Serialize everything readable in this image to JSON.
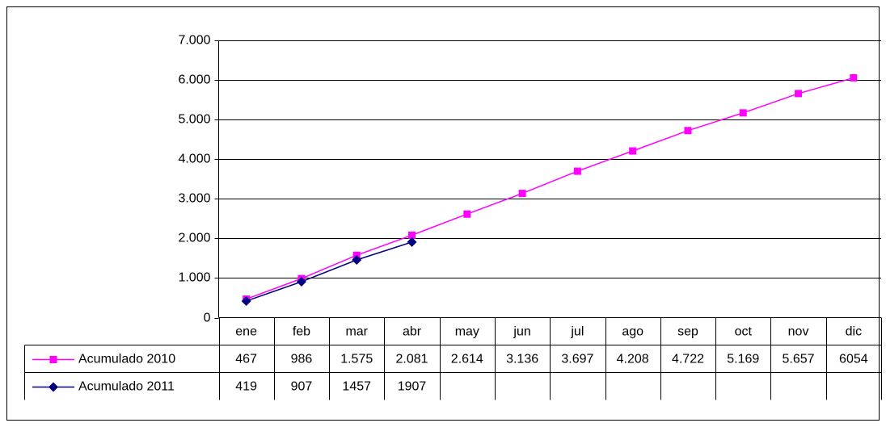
{
  "chart_data": {
    "type": "line",
    "categories": [
      "ene",
      "feb",
      "mar",
      "abr",
      "may",
      "jun",
      "jul",
      "ago",
      "sep",
      "oct",
      "nov",
      "dic"
    ],
    "series": [
      {
        "name": "Acumulado 2010",
        "color": "#ff00ff",
        "marker": "square",
        "values": [
          467,
          986,
          1575,
          2081,
          2614,
          3136,
          3697,
          4208,
          4722,
          5169,
          5657,
          6054
        ],
        "value_labels": [
          "467",
          "986",
          "1.575",
          "2.081",
          "2.614",
          "3.136",
          "3.697",
          "4.208",
          "4.722",
          "5.169",
          "5.657",
          "6054"
        ]
      },
      {
        "name": "Acumulado 2011",
        "color": "#000080",
        "marker": "diamond",
        "values": [
          419,
          907,
          1457,
          1907,
          null,
          null,
          null,
          null,
          null,
          null,
          null,
          null
        ]
      }
    ],
    "ylim": [
      0,
      7000
    ],
    "yticks": [
      0,
      {
        "value": 1000,
        "label": "1.000"
      },
      {
        "value": 2000,
        "label": "2.000"
      },
      {
        "value": 3000,
        "label": "3.000"
      },
      {
        "value": 4000,
        "label": "4.000"
      },
      {
        "value": 5000,
        "label": "5.000"
      },
      {
        "value": 6000,
        "label": "6.000"
      },
      {
        "value": 7000,
        "label": "7.000"
      }
    ],
    "grid": true
  }
}
